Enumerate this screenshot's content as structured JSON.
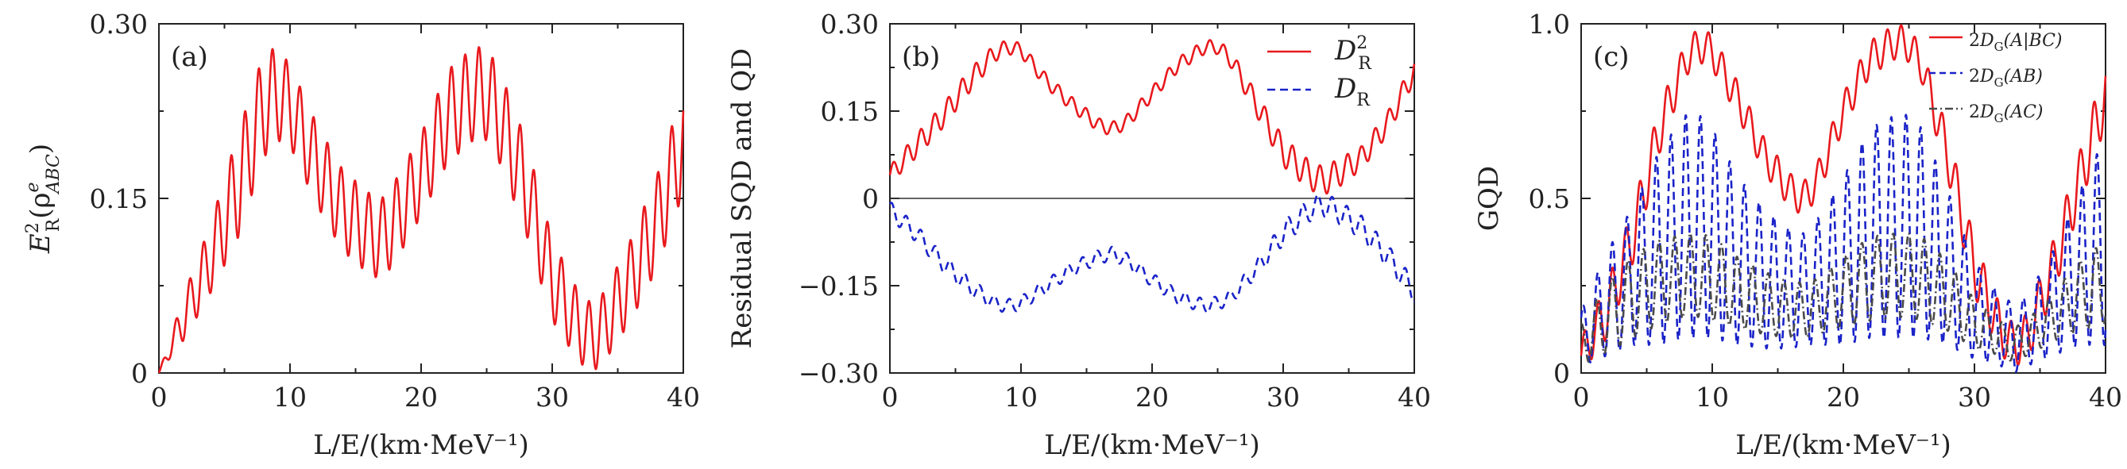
{
  "colors": {
    "red": "#e8191d",
    "blue": "#1a23c8",
    "dark": "#4a4a4a"
  },
  "chart_data": [
    {
      "panel": "(a)",
      "type": "line",
      "xlabel": "L/E/(km·MeV⁻¹)",
      "ylabel": "E²_R(ρ^e_ABC)",
      "ylabel_main": "E",
      "ylabel_sup": "2",
      "ylabel_sub": "R",
      "ylabel_rest": "(ρ",
      "ylabel_rho_sup": "e",
      "ylabel_rho_sub": "ABC",
      "ylabel_close": ")",
      "xlim": [
        0,
        40
      ],
      "ylim": [
        0,
        0.3
      ],
      "xticks": [
        "0",
        "10",
        "20",
        "30",
        "40"
      ],
      "yticks": [
        "0",
        "0.15",
        "0.30"
      ],
      "series": [
        {
          "name": "E²_R",
          "color": "#e8191d",
          "dash": "solid",
          "x": [
            0,
            2,
            4,
            6,
            8,
            9,
            10,
            12,
            14,
            16,
            17,
            18,
            20,
            22,
            24,
            25,
            26,
            28,
            30,
            32,
            33,
            34,
            36,
            38,
            40
          ],
          "center": [
            0,
            0.05,
            0.1,
            0.16,
            0.23,
            0.24,
            0.23,
            0.18,
            0.14,
            0.12,
            0.115,
            0.13,
            0.17,
            0.22,
            0.24,
            0.24,
            0.22,
            0.16,
            0.08,
            0.04,
            0.03,
            0.04,
            0.08,
            0.13,
            0.2
          ],
          "amp": [
            0,
            0.02,
            0.03,
            0.045,
            0.045,
            0.04,
            0.035,
            0.035,
            0.035,
            0.035,
            0.035,
            0.035,
            0.035,
            0.04,
            0.04,
            0.04,
            0.04,
            0.04,
            0.035,
            0.03,
            0.03,
            0.03,
            0.035,
            0.04,
            0.045
          ]
        }
      ]
    },
    {
      "panel": "(b)",
      "type": "line",
      "xlabel": "L/E/(km·MeV⁻¹)",
      "ylabel": "Residual SQD and QD",
      "xlim": [
        0,
        40
      ],
      "ylim": [
        -0.3,
        0.3
      ],
      "xticks": [
        "0",
        "10",
        "20",
        "30",
        "40"
      ],
      "yticks": [
        "−0.30",
        "−0.15",
        "0",
        "0.15",
        "0.30"
      ],
      "zero_line": true,
      "legend": [
        "D²_R",
        "D_R"
      ],
      "legend_d2_main": "D",
      "legend_d2_sup": "2",
      "legend_d2_sub": "R",
      "legend_d_main": "D",
      "legend_d_sub": "R",
      "series": [
        {
          "name": "D²_R",
          "color": "#e8191d",
          "dash": "solid",
          "x": [
            0,
            2,
            4,
            6,
            8,
            9,
            10,
            12,
            14,
            16,
            17,
            18,
            20,
            22,
            24,
            25,
            26,
            28,
            30,
            32,
            33,
            34,
            36,
            38,
            40
          ],
          "center": [
            0.04,
            0.09,
            0.14,
            0.2,
            0.25,
            0.26,
            0.255,
            0.2,
            0.16,
            0.125,
            0.12,
            0.13,
            0.18,
            0.23,
            0.26,
            0.26,
            0.24,
            0.16,
            0.08,
            0.04,
            0.03,
            0.04,
            0.07,
            0.13,
            0.22
          ],
          "amp": [
            0.015,
            0.02,
            0.02,
            0.02,
            0.015,
            0.012,
            0.012,
            0.012,
            0.012,
            0.012,
            0.012,
            0.012,
            0.012,
            0.012,
            0.012,
            0.012,
            0.015,
            0.02,
            0.025,
            0.025,
            0.025,
            0.025,
            0.02,
            0.02,
            0.02
          ]
        },
        {
          "name": "D_R",
          "color": "#1a23c8",
          "dash": "dashed",
          "x": [
            0,
            2,
            4,
            6,
            8,
            9,
            10,
            12,
            14,
            16,
            17,
            18,
            20,
            22,
            24,
            25,
            26,
            28,
            30,
            32,
            33,
            34,
            36,
            38,
            40
          ],
          "center": [
            -0.02,
            -0.06,
            -0.11,
            -0.15,
            -0.18,
            -0.185,
            -0.18,
            -0.15,
            -0.12,
            -0.1,
            -0.095,
            -0.105,
            -0.14,
            -0.17,
            -0.185,
            -0.18,
            -0.17,
            -0.12,
            -0.06,
            -0.02,
            -0.01,
            -0.02,
            -0.05,
            -0.1,
            -0.16
          ],
          "amp": [
            0.015,
            0.015,
            0.015,
            0.015,
            0.012,
            0.012,
            0.012,
            0.012,
            0.012,
            0.012,
            0.012,
            0.012,
            0.012,
            0.012,
            0.012,
            0.012,
            0.012,
            0.015,
            0.02,
            0.02,
            0.02,
            0.02,
            0.02,
            0.02,
            0.02
          ]
        }
      ]
    },
    {
      "panel": "(c)",
      "type": "line",
      "xlabel": "L/E/(km·MeV⁻¹)",
      "ylabel": "GQD",
      "xlim": [
        0,
        40
      ],
      "ylim": [
        0,
        1.0
      ],
      "xticks": [
        "0",
        "10",
        "20",
        "30",
        "40"
      ],
      "yticks": [
        "0",
        "0.5",
        "1.0"
      ],
      "legend": [
        "2D_G(A|BC)",
        "2D_G(AB)",
        "2D_G(AC)"
      ],
      "legend_entries": [
        {
          "pre": "2",
          "main": "D",
          "sub": "G",
          "arg": "(A|BC)"
        },
        {
          "pre": "2",
          "main": "D",
          "sub": "G",
          "arg": "(AB)"
        },
        {
          "pre": "2",
          "main": "D",
          "sub": "G",
          "arg": "(AC)"
        }
      ],
      "series": [
        {
          "name": "2D_G(A|BC)",
          "color": "#e8191d",
          "dash": "solid",
          "x": [
            0,
            2,
            4,
            6,
            8,
            9,
            10,
            12,
            14,
            16,
            17,
            18,
            20,
            22,
            24,
            25,
            26,
            28,
            30,
            32,
            33,
            34,
            36,
            38,
            40
          ],
          "center": [
            0.05,
            0.18,
            0.4,
            0.7,
            0.9,
            0.94,
            0.92,
            0.78,
            0.62,
            0.52,
            0.5,
            0.55,
            0.75,
            0.9,
            0.95,
            0.94,
            0.88,
            0.62,
            0.3,
            0.12,
            0.08,
            0.1,
            0.3,
            0.55,
            0.8
          ],
          "amp": [
            0.05,
            0.08,
            0.08,
            0.07,
            0.05,
            0.05,
            0.05,
            0.05,
            0.05,
            0.05,
            0.05,
            0.05,
            0.05,
            0.05,
            0.05,
            0.05,
            0.05,
            0.07,
            0.08,
            0.07,
            0.06,
            0.07,
            0.08,
            0.08,
            0.09
          ]
        },
        {
          "name": "2D_G(AB)",
          "color": "#1a23c8",
          "dash": "dashed",
          "x": [
            0,
            2,
            4,
            6,
            8,
            9,
            10,
            12,
            14,
            16,
            17,
            18,
            20,
            22,
            24,
            25,
            26,
            28,
            30,
            32,
            33,
            34,
            36,
            38,
            40
          ],
          "center": [
            0.1,
            0.2,
            0.28,
            0.36,
            0.42,
            0.42,
            0.4,
            0.32,
            0.27,
            0.24,
            0.24,
            0.26,
            0.32,
            0.4,
            0.42,
            0.42,
            0.4,
            0.3,
            0.18,
            0.12,
            0.1,
            0.12,
            0.2,
            0.3,
            0.38
          ],
          "amp": [
            0.08,
            0.15,
            0.2,
            0.28,
            0.32,
            0.32,
            0.3,
            0.24,
            0.2,
            0.17,
            0.16,
            0.18,
            0.24,
            0.3,
            0.32,
            0.32,
            0.3,
            0.22,
            0.14,
            0.1,
            0.1,
            0.1,
            0.15,
            0.22,
            0.3
          ]
        },
        {
          "name": "2D_G(AC)",
          "color": "#4a4a4a",
          "dash": "dashdot",
          "x": [
            0,
            2,
            4,
            6,
            8,
            9,
            10,
            12,
            14,
            16,
            17,
            18,
            20,
            22,
            24,
            25,
            26,
            28,
            30,
            32,
            33,
            34,
            36,
            38,
            40
          ],
          "center": [
            0.08,
            0.16,
            0.22,
            0.26,
            0.28,
            0.28,
            0.27,
            0.23,
            0.2,
            0.18,
            0.18,
            0.19,
            0.23,
            0.27,
            0.28,
            0.28,
            0.27,
            0.22,
            0.14,
            0.1,
            0.08,
            0.1,
            0.16,
            0.22,
            0.26
          ],
          "amp": [
            0.06,
            0.1,
            0.12,
            0.12,
            0.12,
            0.12,
            0.12,
            0.1,
            0.09,
            0.08,
            0.08,
            0.08,
            0.1,
            0.12,
            0.12,
            0.12,
            0.12,
            0.1,
            0.07,
            0.05,
            0.05,
            0.05,
            0.07,
            0.1,
            0.12
          ]
        }
      ]
    }
  ]
}
